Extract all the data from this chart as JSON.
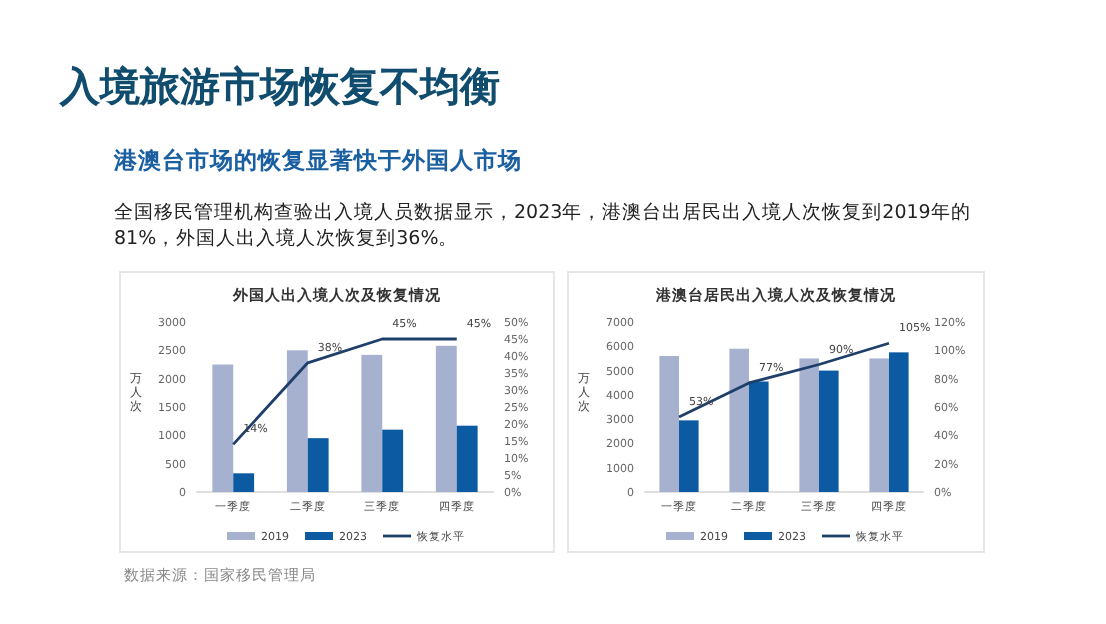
{
  "chart_data": [
    {
      "type": "other",
      "title": "入境旅游市场恢复不均衡",
      "subtitle": "港澳台市场的恢复显著快于外国人市场",
      "annotations": [
        "全国移民管理机构查验出入境人员数据显示，2023年，港澳台出居民出入境人次恢复到2019年的81%，外国人出入境人次恢复到36%。",
        "数据来源：国家移民管理局"
      ]
    },
    {
      "type": "bar",
      "title": "外国人出入境人次及恢复情况",
      "ylabel": "万人次",
      "categories": [
        "一季度",
        "二季度",
        "三季度",
        "四季度"
      ],
      "legend": "bottom",
      "series": [
        {
          "name": "2019",
          "color": "#a5b1cf",
          "values": [
            2250,
            2500,
            2420,
            2580
          ]
        },
        {
          "name": "2023",
          "color": "#0b5aa2",
          "values": [
            330,
            950,
            1100,
            1170
          ]
        },
        {
          "name": "恢复水平",
          "type": "line",
          "axis": "y2",
          "color": "#1f3f6b",
          "values": [
            14,
            38,
            45,
            45
          ],
          "value_labels": [
            "14%",
            "38%",
            "45%",
            "45%"
          ]
        }
      ],
      "ylim": [
        0,
        3000
      ],
      "yticks": [
        0,
        500,
        1000,
        1500,
        2000,
        2500,
        3000
      ],
      "y2lim": [
        0,
        50
      ],
      "y2ticks": [
        {
          "value": 0,
          "label": "0%"
        },
        {
          "value": 5,
          "label": "5%"
        },
        {
          "value": 10,
          "label": "10%"
        },
        {
          "value": 15,
          "label": "15%"
        },
        {
          "value": 20,
          "label": "20%"
        },
        {
          "value": 25,
          "label": "25%"
        },
        {
          "value": 30,
          "label": "30%"
        },
        {
          "value": 35,
          "label": "35%"
        },
        {
          "value": 40,
          "label": "40%"
        },
        {
          "value": 45,
          "label": "45%"
        },
        {
          "value": 50,
          "label": "50%"
        }
      ]
    },
    {
      "type": "bar",
      "title": "港澳台居民出入境人次及恢复情况",
      "ylabel": "万人次",
      "categories": [
        "一季度",
        "二季度",
        "三季度",
        "四季度"
      ],
      "legend": "bottom",
      "series": [
        {
          "name": "2019",
          "color": "#a5b1cf",
          "values": [
            5600,
            5900,
            5500,
            5500
          ]
        },
        {
          "name": "2023",
          "color": "#0b5aa2",
          "values": [
            2950,
            4550,
            5000,
            5750
          ]
        },
        {
          "name": "恢复水平",
          "type": "line",
          "axis": "y2",
          "color": "#1f3f6b",
          "values": [
            53,
            77,
            90,
            105
          ],
          "value_labels": [
            "53%",
            "77%",
            "90%",
            "105%"
          ]
        }
      ],
      "ylim": [
        0,
        7000
      ],
      "yticks": [
        0,
        1000,
        2000,
        3000,
        4000,
        5000,
        6000,
        7000
      ],
      "y2lim": [
        0,
        120
      ],
      "y2ticks": [
        {
          "value": 0,
          "label": "0%"
        },
        {
          "value": 20,
          "label": "20%"
        },
        {
          "value": 40,
          "label": "40%"
        },
        {
          "value": 60,
          "label": "60%"
        },
        {
          "value": 80,
          "label": "80%"
        },
        {
          "value": 100,
          "label": "100%"
        },
        {
          "value": 120,
          "label": "120%"
        }
      ]
    }
  ]
}
